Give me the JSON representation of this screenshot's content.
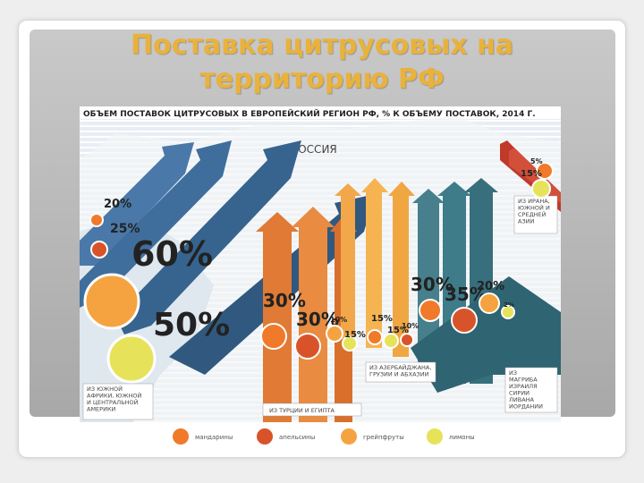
{
  "slide": {
    "title_line1": "Поставка цитрусовых на",
    "title_line2": "территорию РФ"
  },
  "chart_data": {
    "type": "infographic",
    "title": "ОБЪЕМ ПОСТАВОК ЦИТРУСОВЫХ В ЕВРОПЕЙСКИЙ РЕГИОН РФ, % К ОБЪЕМУ ПОСТАВОК, 2014 Г.",
    "map_label": "РОССИЯ",
    "unit": "%",
    "groups": [
      {
        "name": "ИЗ ЮЖНОЙ АФРИКИ, ЮЖНОЙ И ЦЕНТРАЛЬНОЙ АМЕРИКИ",
        "color": "#3f6e9c",
        "values": {
          "mandarins": 20,
          "oranges": 25,
          "grapefruits": 60,
          "lemons": 50
        }
      },
      {
        "name": "ИЗ ТУРЦИИ И ЕГИПТА",
        "color": "#e0823a",
        "values": {
          "mandarins": 30,
          "oranges": 30,
          "grapefruits": 10,
          "lemons": 15
        }
      },
      {
        "name": "ИЗ АЗЕРБАЙДЖАНА, ГРУЗИИ И АБХАЗИИ",
        "color": "#f0a742",
        "values": {
          "mandarins": 15,
          "oranges": 10,
          "lemons": 15
        }
      },
      {
        "name": "ИЗ МАГРИБА ИЗРАИЛЯ СИРИИ ЛИВАНА ИОРДАНИИ",
        "color": "#3e7c8a",
        "values": {
          "mandarins": 30,
          "oranges": 35,
          "grapefruits": 20,
          "lemons": 2
        }
      },
      {
        "name": "ИЗ ИРАНА, ЮЖНОЙ И СРЕДНЕЙ АЗИИ",
        "color": "#c0392b",
        "values": {
          "mandarins": 5,
          "oranges": 15
        }
      }
    ],
    "legend": [
      {
        "name": "мандарины",
        "fill": "#f07a2a"
      },
      {
        "name": "апельсины",
        "fill": "#d9532a"
      },
      {
        "name": "грейпфруты",
        "fill": "#f5a340"
      },
      {
        "name": "лимоны",
        "fill": "#e6e35a"
      }
    ]
  }
}
